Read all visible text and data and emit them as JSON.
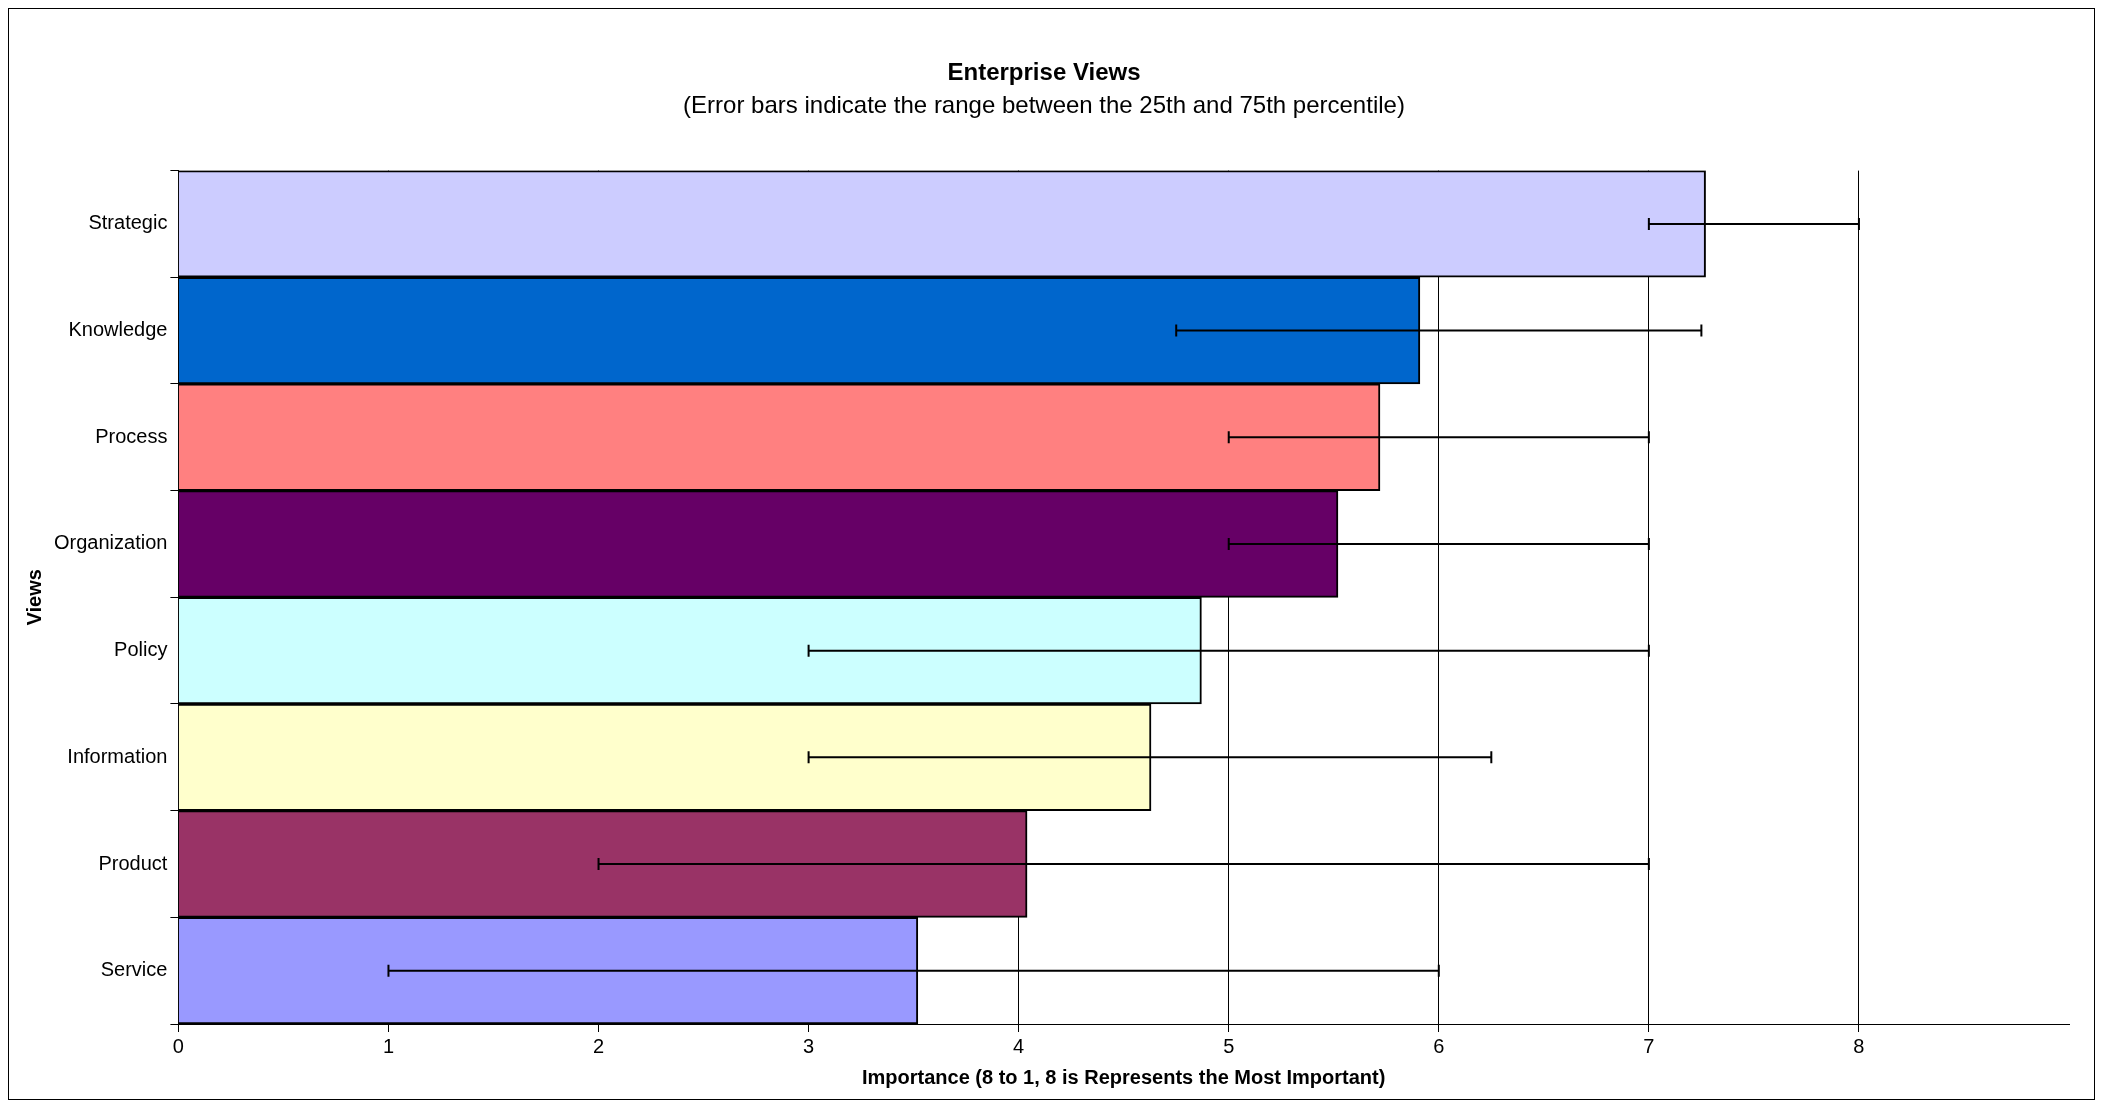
{
  "chart_data": {
    "type": "bar",
    "orientation": "horizontal",
    "title": "Enterprise Views",
    "subtitle": "(Error bars indicate the range between the 25th and 75th percentile)",
    "xlabel": "Importance (8 to 1, 8 is Represents the Most Important)",
    "ylabel": "Views",
    "categories": [
      "Strategic",
      "Knowledge",
      "Process",
      "Organization",
      "Policy",
      "Information",
      "Product",
      "Service"
    ],
    "values": [
      7.27,
      5.91,
      5.72,
      5.52,
      4.87,
      4.63,
      4.04,
      3.52
    ],
    "colors": [
      "#ccccff",
      "#0066cc",
      "#ff8080",
      "#660066",
      "#ccffff",
      "#ffffcc",
      "#993366",
      "#9999ff"
    ],
    "errors": [
      [
        7,
        8
      ],
      [
        4.75,
        7.25
      ],
      [
        5,
        7
      ],
      [
        5,
        7
      ],
      [
        3,
        7
      ],
      [
        3,
        6.25
      ],
      [
        2,
        7
      ],
      [
        1,
        6
      ]
    ],
    "xlim": [
      0,
      9
    ],
    "xticks": [
      0,
      1,
      2,
      3,
      4,
      5,
      6,
      7,
      8
    ],
    "grid": "x",
    "legend": false
  }
}
